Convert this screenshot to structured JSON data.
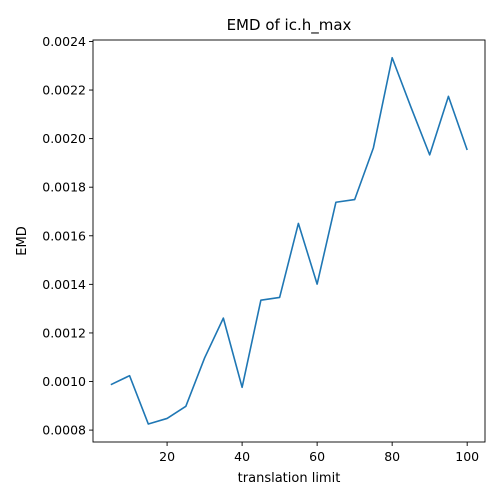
{
  "chart_data": {
    "type": "line",
    "title": "EMD of ic.h_max",
    "xlabel": "translation limit",
    "ylabel": "EMD",
    "xlim": [
      0.25,
      104.75
    ],
    "ylim": [
      0.000751,
      0.002406
    ],
    "xticks": [
      20,
      40,
      60,
      80,
      100
    ],
    "xtick_labels": [
      "20",
      "40",
      "60",
      "80",
      "100"
    ],
    "yticks": [
      0.0008,
      0.001,
      0.0012,
      0.0014,
      0.0016,
      0.0018,
      0.002,
      0.0022,
      0.0024
    ],
    "ytick_labels": [
      "0.0008",
      "0.0010",
      "0.0012",
      "0.0014",
      "0.0016",
      "0.0018",
      "0.0020",
      "0.0022",
      "0.0024"
    ],
    "grid": false,
    "line_color": "#1f77b4",
    "series": [
      {
        "x": [
          5,
          10,
          15,
          20,
          25,
          30,
          35,
          40,
          45,
          50,
          55,
          60,
          65,
          70,
          75,
          80,
          85,
          90,
          95,
          100
        ],
        "values": [
          0.000987,
          0.001024,
          0.000825,
          0.000848,
          0.000898,
          0.001097,
          0.001261,
          0.000976,
          0.001335,
          0.001346,
          0.001651,
          0.001401,
          0.001738,
          0.001749,
          0.001962,
          0.002333,
          0.00213,
          0.001933,
          0.002174,
          0.001953
        ]
      }
    ]
  }
}
